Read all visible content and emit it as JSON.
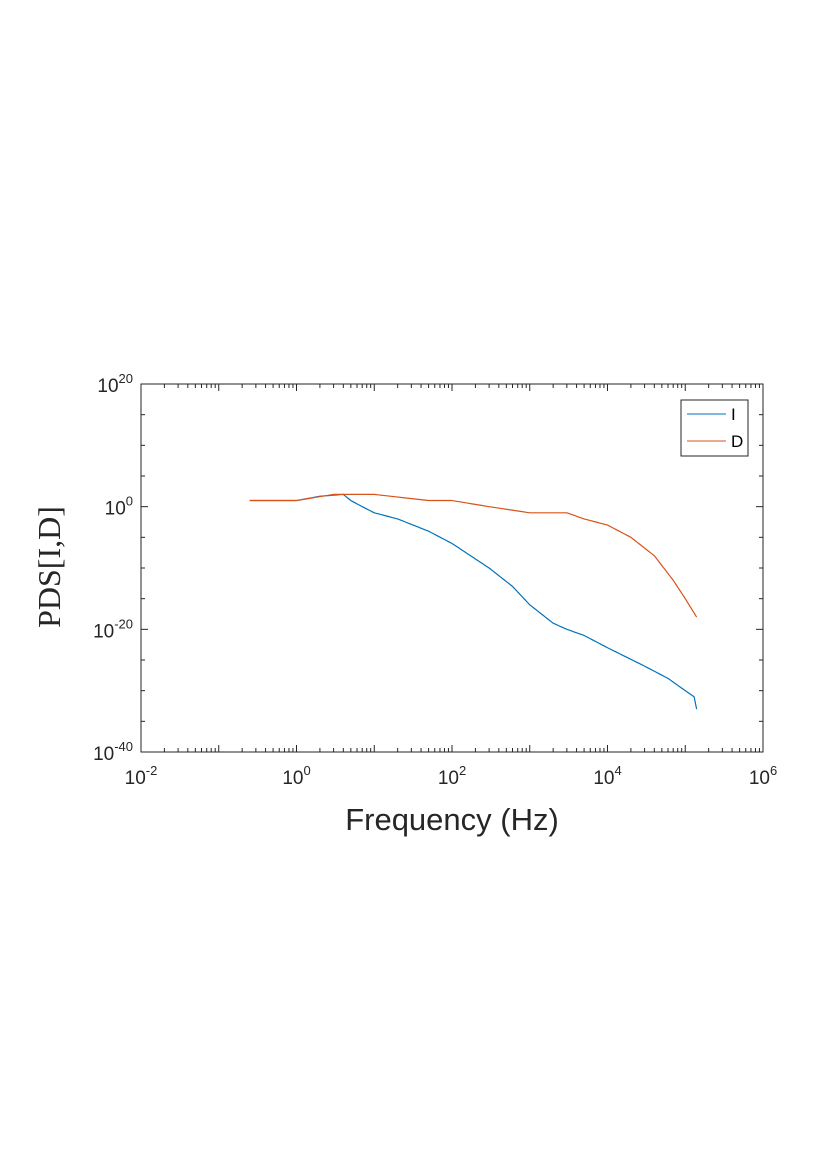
{
  "chart_data": {
    "type": "line",
    "title": "",
    "xlabel": "Frequency (Hz)",
    "ylabel": "PDS[I,D]",
    "xscale": "log",
    "yscale": "log",
    "xlim": [
      0.01,
      1000000
    ],
    "ylim": [
      1e-40,
      1e+20
    ],
    "x_ticks": [
      {
        "base": "10",
        "exp": "-2",
        "value": 0.01
      },
      {
        "base": "10",
        "exp": "0",
        "value": 1
      },
      {
        "base": "10",
        "exp": "2",
        "value": 100
      },
      {
        "base": "10",
        "exp": "4",
        "value": 10000
      },
      {
        "base": "10",
        "exp": "6",
        "value": 1000000
      }
    ],
    "y_ticks": [
      {
        "base": "10",
        "exp": "-40",
        "value": 1e-40
      },
      {
        "base": "10",
        "exp": "-20",
        "value": 1e-20
      },
      {
        "base": "10",
        "exp": "0",
        "value": 1
      },
      {
        "base": "10",
        "exp": "20",
        "value": 1e+20
      }
    ],
    "grid": false,
    "legend": "top-right",
    "series": [
      {
        "name": "I",
        "color": "#0072BD",
        "points": [
          [
            0.25,
            10.0
          ],
          [
            1,
            10.0
          ],
          [
            2,
            50.0
          ],
          [
            4,
            100.0
          ],
          [
            5,
            10.0
          ],
          [
            7,
            1.0
          ],
          [
            10,
            0.1
          ],
          [
            20,
            0.01
          ],
          [
            50,
            0.0001
          ],
          [
            100,
            1e-06
          ],
          [
            300,
            1e-10
          ],
          [
            600,
            1e-13
          ],
          [
            1000,
            1e-16
          ],
          [
            2000,
            1e-19
          ],
          [
            3000,
            1e-20
          ],
          [
            5000,
            1e-21
          ],
          [
            10000,
            1e-23
          ],
          [
            30000,
            1e-26
          ],
          [
            60000,
            1e-28
          ],
          [
            100000,
            1e-30
          ],
          [
            130000,
            1e-31
          ],
          [
            140000,
            1e-33
          ]
        ]
      },
      {
        "name": "D",
        "color": "#D95319",
        "points": [
          [
            0.25,
            10.0
          ],
          [
            1,
            10.0
          ],
          [
            3,
            100.0
          ],
          [
            10,
            100.0
          ],
          [
            50,
            10.0
          ],
          [
            100,
            10.0
          ],
          [
            300,
            1.0
          ],
          [
            1000,
            0.1
          ],
          [
            3000,
            0.1
          ],
          [
            5000,
            0.01
          ],
          [
            10000,
            0.001
          ],
          [
            20000,
            1e-05
          ],
          [
            40000,
            1e-08
          ],
          [
            70000,
            1e-12
          ],
          [
            100000,
            1e-15
          ],
          [
            140000,
            1e-18
          ]
        ]
      }
    ]
  }
}
